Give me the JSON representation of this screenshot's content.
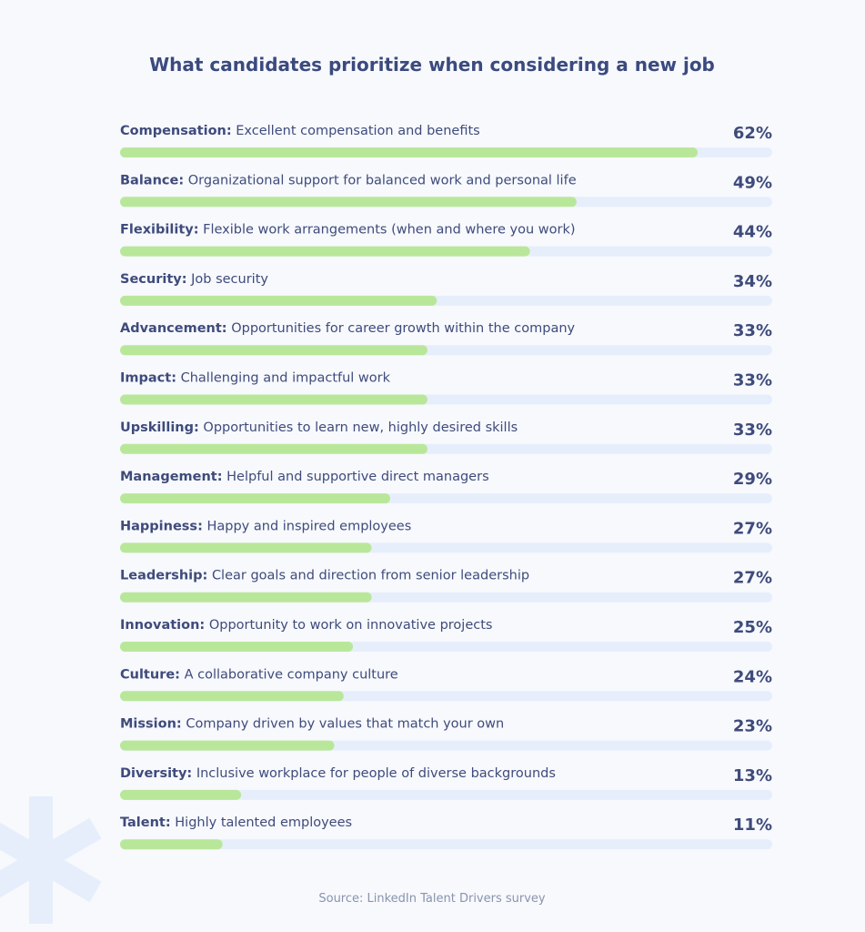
{
  "chart_data": {
    "type": "bar",
    "title": "What candidates prioritize when considering a new job",
    "categories": [
      "Compensation:",
      "Balance:",
      "Flexibility:",
      "Security:",
      "Advancement:",
      "Impact:",
      "Upskilling:",
      "Management:",
      "Happiness:",
      "Leadership:",
      "Innovation:",
      "Culture:",
      "Mission:",
      "Diversity:",
      "Talent:"
    ],
    "descriptions": [
      "Excellent compensation and benefits",
      "Organizational support for balanced work and personal life",
      "Flexible work arrangements (when and where you work)",
      "Job security",
      "Opportunities for career growth within the company",
      "Challenging and impactful work",
      "Opportunities to learn new, highly desired skills",
      "Helpful and supportive direct managers",
      "Happy and inspired employees",
      "Clear goals and direction from senior leadership",
      "Opportunity to work on innovative projects",
      "A collaborative company culture",
      "Company driven by values that match your own",
      "Inclusive workplace for people of diverse backgrounds",
      "Highly talented employees"
    ],
    "values": [
      62,
      49,
      44,
      34,
      33,
      33,
      33,
      29,
      27,
      27,
      25,
      24,
      23,
      13,
      11
    ],
    "value_labels": [
      "62%",
      "49%",
      "44%",
      "34%",
      "33%",
      "33%",
      "33%",
      "29%",
      "27%",
      "27%",
      "25%",
      "24%",
      "23%",
      "13%",
      "11%"
    ],
    "color": "#b9e79a",
    "track_color": "#e7eefb",
    "xlim": [
      0,
      70
    ],
    "source": "Source: LinkedIn Talent Drivers survey"
  }
}
